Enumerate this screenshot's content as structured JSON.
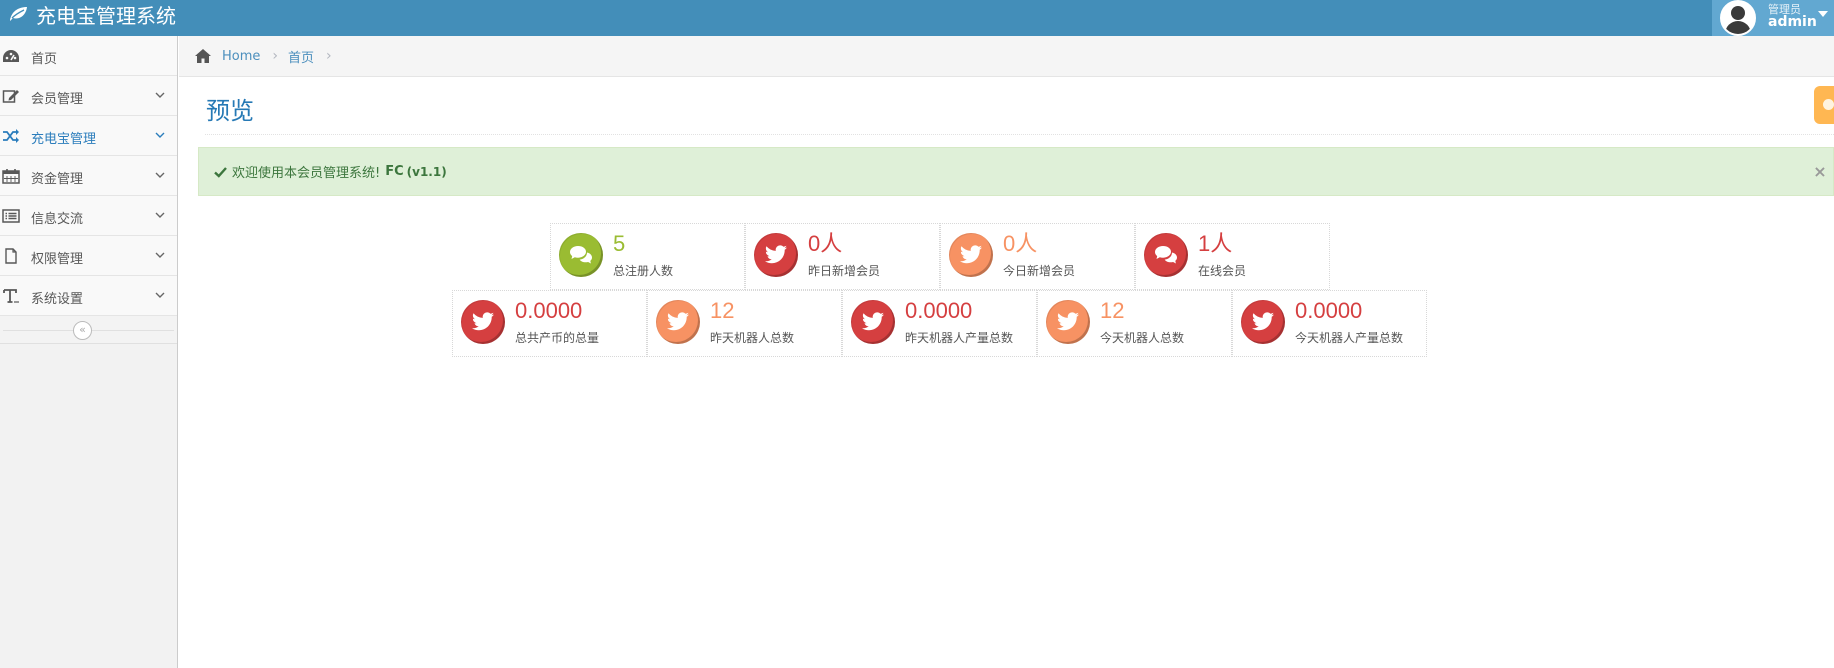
{
  "app": {
    "title": "充电宝管理系统"
  },
  "user": {
    "role": "管理员",
    "name": "admin"
  },
  "sidebar": {
    "items": [
      {
        "label": "首页",
        "icon": "dashboard-icon",
        "has_submenu": false,
        "active": false
      },
      {
        "label": "会员管理",
        "icon": "edit-icon",
        "has_submenu": true,
        "active": false
      },
      {
        "label": "充电宝管理",
        "icon": "shuffle-icon",
        "has_submenu": true,
        "active": true
      },
      {
        "label": "资金管理",
        "icon": "calendar-icon",
        "has_submenu": true,
        "active": false
      },
      {
        "label": "信息交流",
        "icon": "list-alt-icon",
        "has_submenu": true,
        "active": false
      },
      {
        "label": "权限管理",
        "icon": "file-icon",
        "has_submenu": true,
        "active": false
      },
      {
        "label": "系统设置",
        "icon": "text-icon",
        "has_submenu": true,
        "active": false
      }
    ],
    "collapse_glyph": "«"
  },
  "breadcrumb": {
    "home": "Home",
    "current": "首页",
    "separator": "›"
  },
  "page": {
    "title": "预览"
  },
  "alert": {
    "message": "欢迎使用本会员管理系统!",
    "brand": "FC",
    "version": "(v1.1)",
    "close": "×"
  },
  "stats_row1": [
    {
      "value": "5",
      "label": "总注册人数",
      "icon": "comments-icon",
      "color": "#9abc32"
    },
    {
      "value": "0人",
      "label": "昨日新增会员",
      "icon": "twitter-icon",
      "color": "#d53f40"
    },
    {
      "value": "0人",
      "label": "今日新增会员",
      "icon": "twitter-icon",
      "color": "#f79263"
    },
    {
      "value": "1人",
      "label": "在线会员",
      "icon": "comments-icon",
      "color": "#d53f40"
    }
  ],
  "stats_row2": [
    {
      "value": "0.0000",
      "label": "总共产币的总量",
      "icon": "twitter-icon",
      "color": "#d53f40"
    },
    {
      "value": "12",
      "label": "昨天机器人总数",
      "icon": "twitter-icon",
      "color": "#f79263"
    },
    {
      "value": "0.0000",
      "label": "昨天机器人产量总数",
      "icon": "twitter-icon",
      "color": "#d53f40"
    },
    {
      "value": "12",
      "label": "今天机器人总数",
      "icon": "twitter-icon",
      "color": "#f79263"
    },
    {
      "value": "0.0000",
      "label": "今天机器人产量总数",
      "icon": "twitter-icon",
      "color": "#d53f40"
    }
  ],
  "colors": {
    "navbar": "#438eb9",
    "user_box": "#62a8d1",
    "accent_link": "#4c8fbd",
    "page_title": "#2679b5",
    "alert_bg": "#dff0d8",
    "alert_text": "#3c763d"
  }
}
